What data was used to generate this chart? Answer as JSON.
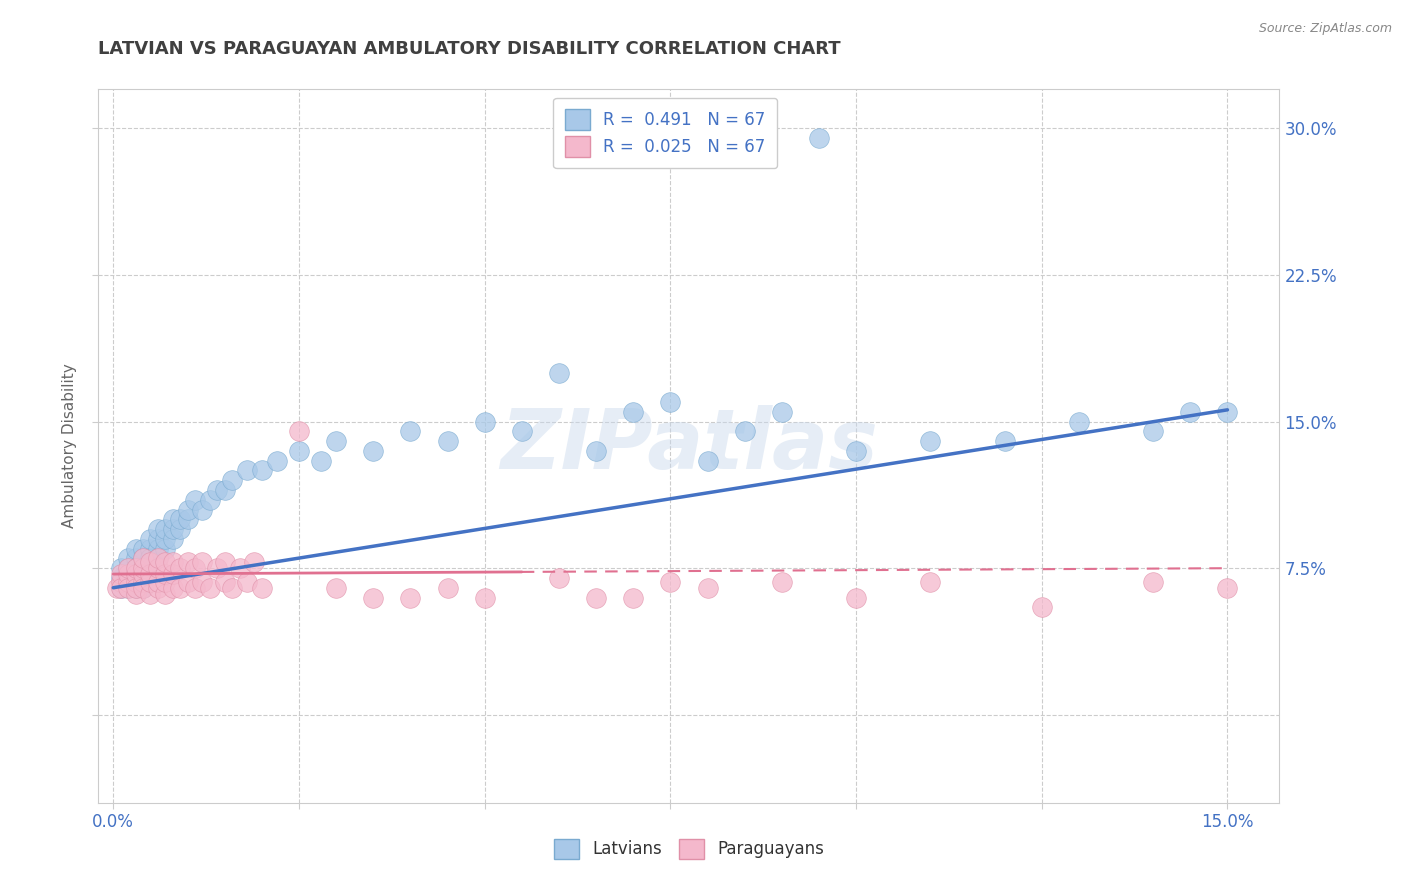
{
  "title": "LATVIAN VS PARAGUAYAN AMBULATORY DISABILITY CORRELATION CHART",
  "source": "Source: ZipAtlas.com",
  "ylabel": "Ambulatory Disability",
  "xlim": [
    -0.002,
    0.157
  ],
  "ylim": [
    -0.045,
    0.32
  ],
  "x_ticks": [
    0.0,
    0.025,
    0.05,
    0.075,
    0.1,
    0.125,
    0.15
  ],
  "x_tick_labels": [
    "0.0%",
    "",
    "",
    "",
    "",
    "",
    "15.0%"
  ],
  "y_ticks": [
    0.0,
    0.075,
    0.15,
    0.225,
    0.3
  ],
  "y_tick_labels": [
    "",
    "7.5%",
    "15.0%",
    "22.5%",
    "30.0%"
  ],
  "latvian_R": 0.491,
  "latvian_N": 67,
  "paraguayan_R": 0.025,
  "paraguayan_N": 67,
  "latvian_color": "#a8c8e8",
  "latvian_edge_color": "#7aaad0",
  "latvian_line_color": "#4472c4",
  "paraguayan_color": "#f4b8cc",
  "paraguayan_edge_color": "#e090a8",
  "paraguayan_line_color": "#e07090",
  "background_color": "#ffffff",
  "grid_color": "#cccccc",
  "watermark": "ZIPatlas",
  "title_color": "#404040",
  "source_color": "#888888",
  "tick_color": "#4472c4",
  "ylabel_color": "#666666",
  "latvian_x": [
    0.001,
    0.001,
    0.001,
    0.002,
    0.002,
    0.002,
    0.002,
    0.003,
    0.003,
    0.003,
    0.003,
    0.003,
    0.004,
    0.004,
    0.004,
    0.004,
    0.004,
    0.005,
    0.005,
    0.005,
    0.005,
    0.006,
    0.006,
    0.006,
    0.006,
    0.007,
    0.007,
    0.007,
    0.008,
    0.008,
    0.008,
    0.009,
    0.009,
    0.01,
    0.01,
    0.011,
    0.012,
    0.013,
    0.014,
    0.015,
    0.016,
    0.018,
    0.02,
    0.022,
    0.025,
    0.028,
    0.03,
    0.035,
    0.04,
    0.045,
    0.05,
    0.055,
    0.06,
    0.065,
    0.07,
    0.075,
    0.08,
    0.085,
    0.09,
    0.095,
    0.1,
    0.11,
    0.12,
    0.13,
    0.14,
    0.145,
    0.15
  ],
  "latvian_y": [
    0.07,
    0.075,
    0.065,
    0.075,
    0.08,
    0.07,
    0.065,
    0.08,
    0.085,
    0.075,
    0.07,
    0.065,
    0.085,
    0.08,
    0.075,
    0.07,
    0.065,
    0.085,
    0.08,
    0.075,
    0.09,
    0.085,
    0.08,
    0.09,
    0.095,
    0.085,
    0.09,
    0.095,
    0.09,
    0.095,
    0.1,
    0.095,
    0.1,
    0.1,
    0.105,
    0.11,
    0.105,
    0.11,
    0.115,
    0.115,
    0.12,
    0.125,
    0.125,
    0.13,
    0.135,
    0.13,
    0.14,
    0.135,
    0.145,
    0.14,
    0.15,
    0.145,
    0.175,
    0.135,
    0.155,
    0.16,
    0.13,
    0.145,
    0.155,
    0.295,
    0.135,
    0.14,
    0.14,
    0.15,
    0.145,
    0.155,
    0.155
  ],
  "paraguayan_x": [
    0.0005,
    0.001,
    0.001,
    0.001,
    0.002,
    0.002,
    0.002,
    0.002,
    0.003,
    0.003,
    0.003,
    0.003,
    0.003,
    0.004,
    0.004,
    0.004,
    0.004,
    0.004,
    0.005,
    0.005,
    0.005,
    0.005,
    0.006,
    0.006,
    0.006,
    0.006,
    0.007,
    0.007,
    0.007,
    0.007,
    0.008,
    0.008,
    0.008,
    0.009,
    0.009,
    0.01,
    0.01,
    0.011,
    0.011,
    0.012,
    0.012,
    0.013,
    0.014,
    0.015,
    0.015,
    0.016,
    0.017,
    0.018,
    0.019,
    0.02,
    0.025,
    0.03,
    0.035,
    0.04,
    0.045,
    0.05,
    0.06,
    0.065,
    0.07,
    0.075,
    0.08,
    0.09,
    0.1,
    0.11,
    0.125,
    0.14,
    0.15
  ],
  "paraguayan_y": [
    0.065,
    0.068,
    0.072,
    0.065,
    0.068,
    0.072,
    0.075,
    0.065,
    0.062,
    0.068,
    0.072,
    0.075,
    0.065,
    0.068,
    0.072,
    0.075,
    0.08,
    0.065,
    0.062,
    0.068,
    0.072,
    0.078,
    0.065,
    0.068,
    0.075,
    0.08,
    0.062,
    0.068,
    0.072,
    0.078,
    0.065,
    0.072,
    0.078,
    0.065,
    0.075,
    0.068,
    0.078,
    0.065,
    0.075,
    0.068,
    0.078,
    0.065,
    0.075,
    0.068,
    0.078,
    0.065,
    0.075,
    0.068,
    0.078,
    0.065,
    0.145,
    0.065,
    0.06,
    0.06,
    0.065,
    0.06,
    0.07,
    0.06,
    0.06,
    0.068,
    0.065,
    0.068,
    0.06,
    0.068,
    0.055,
    0.068,
    0.065
  ],
  "lat_trend_x0": 0.0,
  "lat_trend_y0": 0.065,
  "lat_trend_x1": 0.15,
  "lat_trend_y1": 0.156,
  "par_trend_x0": 0.0,
  "par_trend_y0": 0.072,
  "par_trend_x1": 0.15,
  "par_trend_y1": 0.075
}
